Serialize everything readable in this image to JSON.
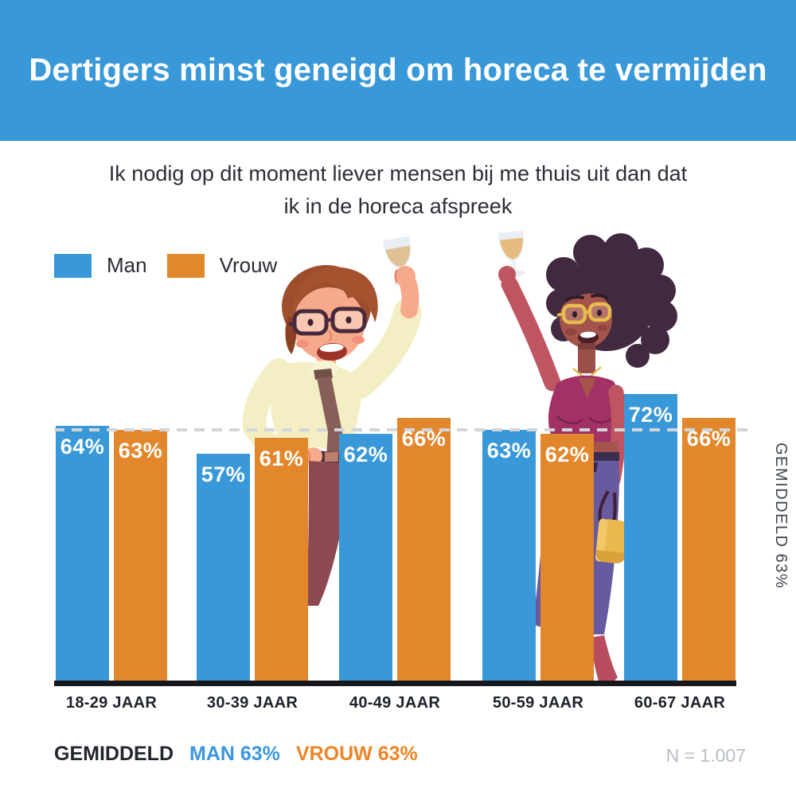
{
  "header": {
    "title": "Dertigers minst geneigd om horeca te vermijden"
  },
  "subtitle": {
    "line1": "Ik nodig op dit moment liever mensen bij me thuis uit dan dat",
    "line2": "ik in de horeca afspreek"
  },
  "legend": {
    "items": [
      {
        "label": "Man",
        "color": "#3998d8"
      },
      {
        "label": "Vrouw",
        "color": "#e2872c"
      }
    ]
  },
  "chart_data": {
    "type": "bar",
    "title": "Ik nodig op dit moment liever mensen bij me thuis uit dan dat ik in de horeca afspreek",
    "categories": [
      "18-29 JAAR",
      "30-39 JAAR",
      "40-49 JAAR",
      "50-59 JAAR",
      "60-67 JAAR"
    ],
    "series": [
      {
        "name": "Man",
        "color": "#3998d8",
        "values": [
          64,
          57,
          62,
          63,
          72
        ]
      },
      {
        "name": "Vrouw",
        "color": "#e2872c",
        "values": [
          63,
          61,
          66,
          62,
          66
        ]
      }
    ],
    "value_suffix": "%",
    "ylim": [
      0,
      100
    ],
    "grid": false,
    "legend_position": "top-left",
    "average_line": {
      "value": 63,
      "label": "GEMIDDELD 63%",
      "style": "dashed",
      "color": "#d2d5d9"
    }
  },
  "footer": {
    "average_label": "GEMIDDELD",
    "man_summary": "MAN 63%",
    "vrouw_summary": "VROUW 63%",
    "sample_size": "N = 1.007"
  },
  "illustration": {
    "description": "man and woman toasting with wine glasses"
  },
  "colors": {
    "accent_blue": "#3998d8",
    "accent_orange": "#e2872c",
    "baseline": "#17181c"
  }
}
